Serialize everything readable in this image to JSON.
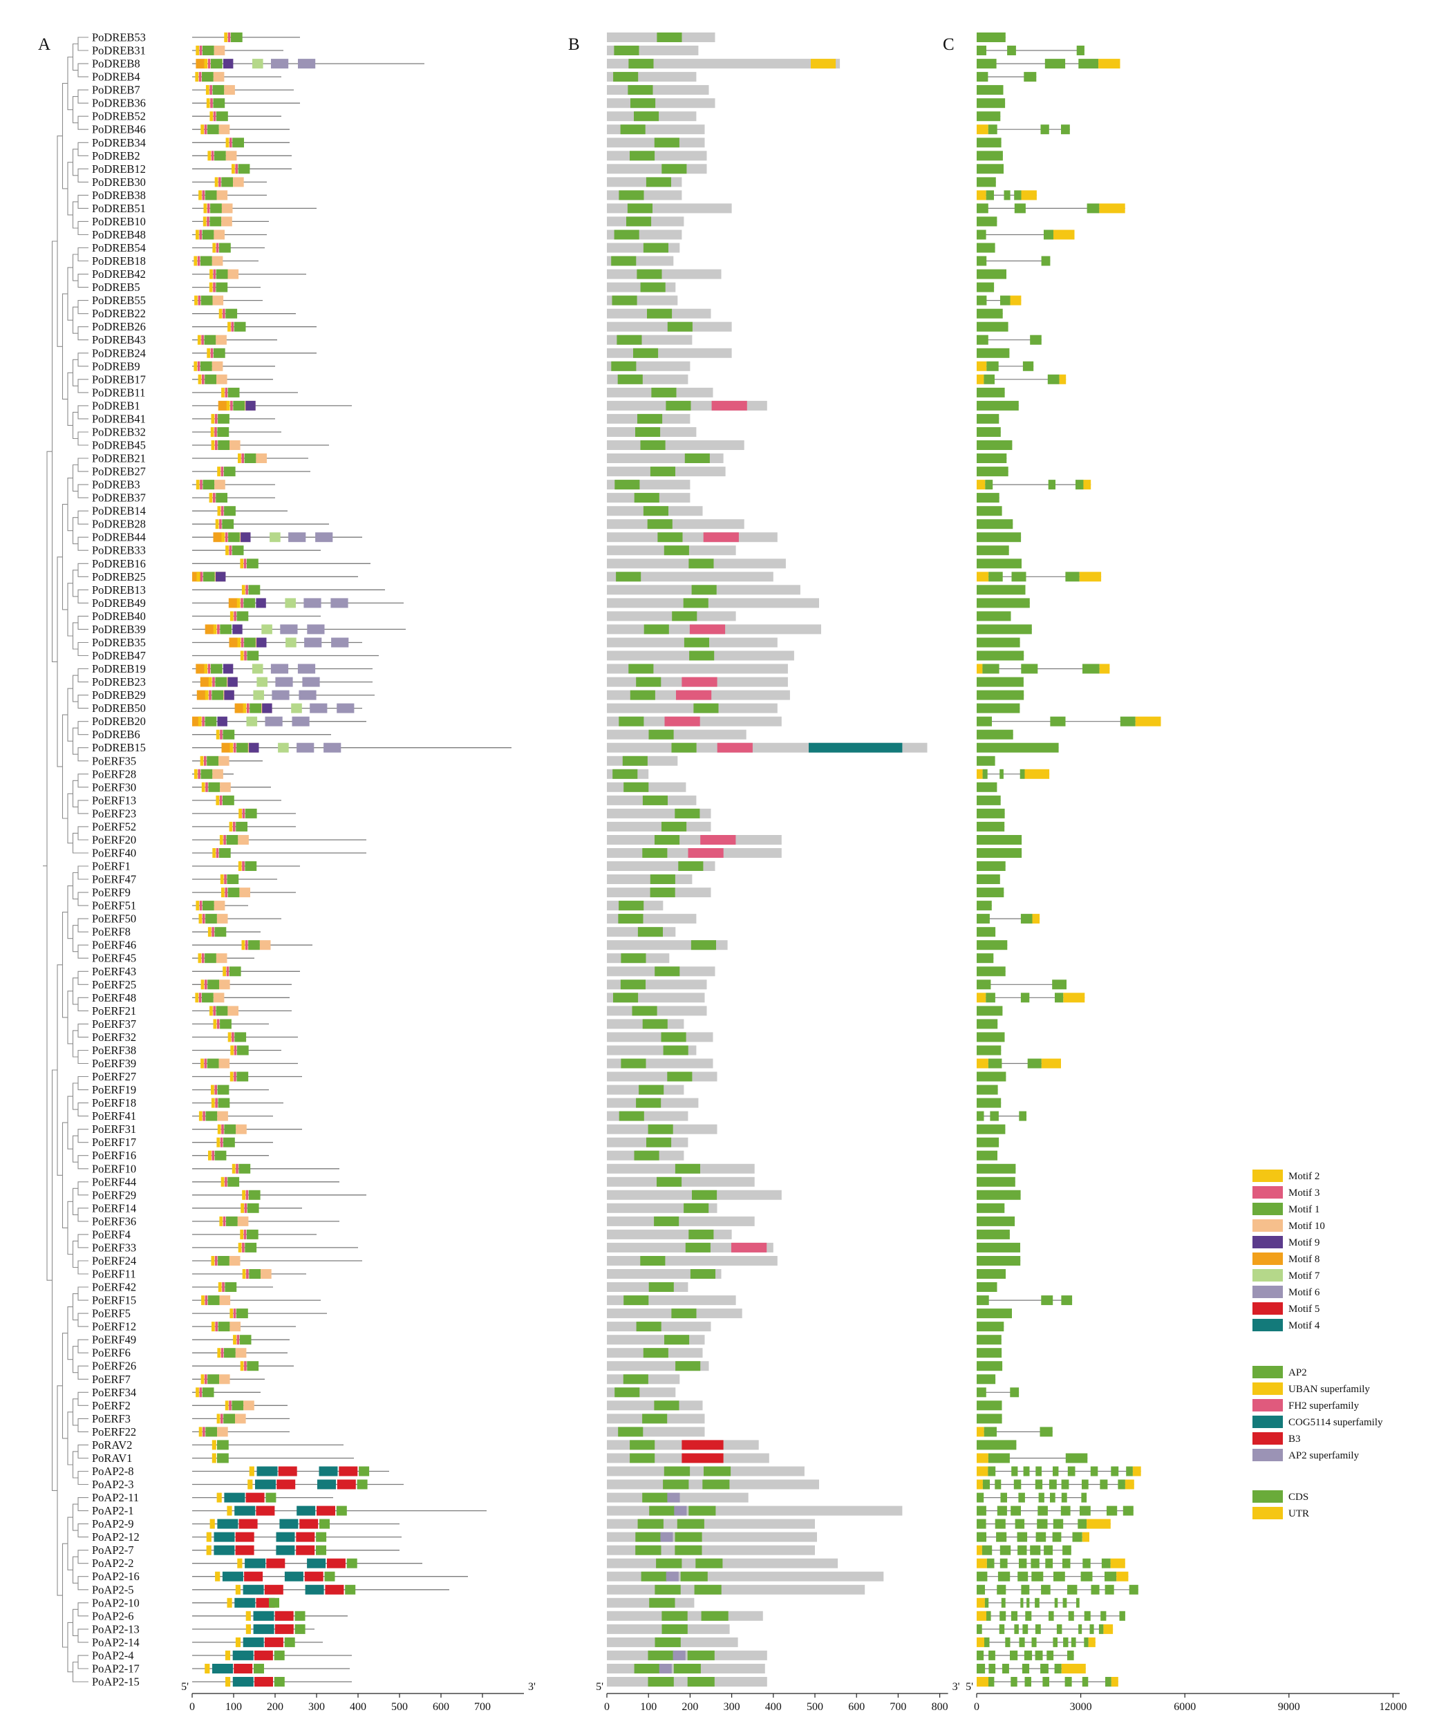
{
  "panels": {
    "a": "A",
    "b": "B",
    "c": "C"
  },
  "chart_data": [
    {
      "panel": "A",
      "type": "motif-schematic with phylogenetic tree",
      "genes": [
        "PoDREB53",
        "PoDREB31",
        "PoDREB8",
        "PoDREB4",
        "PoDREB7",
        "PoDREB36",
        "PoDREB52",
        "PoDREB46",
        "PoDREB34",
        "PoDREB2",
        "PoDREB12",
        "PoDREB30",
        "PoDREB38",
        "PoDREB51",
        "PoDREB10",
        "PoDREB48",
        "PoDREB54",
        "PoDREB18",
        "PoDREB42",
        "PoDREB5",
        "PoDREB55",
        "PoDREB22",
        "PoDREB26",
        "PoDREB43",
        "PoDREB24",
        "PoDREB9",
        "PoDREB17",
        "PoDREB11",
        "PoDREB1",
        "PoDREB41",
        "PoDREB32",
        "PoDREB45",
        "PoDREB21",
        "PoDREB27",
        "PoDREB3",
        "PoDREB37",
        "PoDREB14",
        "PoDREB28",
        "PoDREB44",
        "PoDREB33",
        "PoDREB16",
        "PoDREB25",
        "PoDREB13",
        "PoDREB49",
        "PoDREB40",
        "PoDREB39",
        "PoDREB35",
        "PoDREB47",
        "PoDREB19",
        "PoDREB23",
        "PoDREB29",
        "PoDREB50",
        "PoDREB20",
        "PoDREB6",
        "PoDREB15",
        "PoERF35",
        "PoERF28",
        "PoERF30",
        "PoERF13",
        "PoERF23",
        "PoERF52",
        "PoERF20",
        "PoERF40",
        "PoERF1",
        "PoERF47",
        "PoERF9",
        "PoERF51",
        "PoERF50",
        "PoERF8",
        "PoERF46",
        "PoERF45",
        "PoERF43",
        "PoERF25",
        "PoERF48",
        "PoERF21",
        "PoERF37",
        "PoERF32",
        "PoERF38",
        "PoERF39",
        "PoERF27",
        "PoERF19",
        "PoERF18",
        "PoERF41",
        "PoERF31",
        "PoERF17",
        "PoERF16",
        "PoERF10",
        "PoERF44",
        "PoERF29",
        "PoERF14",
        "PoERF36",
        "PoERF4",
        "PoERF33",
        "PoERF24",
        "PoERF11",
        "PoERF42",
        "PoERF15",
        "PoERF5",
        "PoERF12",
        "PoERF49",
        "PoERF6",
        "PoERF26",
        "PoERF7",
        "PoERF34",
        "PoERF2",
        "PoERF3",
        "PoERF22",
        "PoRAV2",
        "PoRAV1",
        "PoAP2-8",
        "PoAP2-3",
        "PoAP2-11",
        "PoAP2-1",
        "PoAP2-9",
        "PoAP2-12",
        "PoAP2-7",
        "PoAP2-2",
        "PoAP2-16",
        "PoAP2-5",
        "PoAP2-10",
        "PoAP2-6",
        "PoAP2-13",
        "PoAP2-14",
        "PoAP2-4",
        "PoAP2-17",
        "PoAP2-15"
      ],
      "protein_length_aa": [
        260,
        220,
        560,
        215,
        245,
        260,
        215,
        235,
        235,
        240,
        240,
        180,
        180,
        300,
        185,
        180,
        175,
        160,
        275,
        165,
        170,
        250,
        300,
        205,
        300,
        200,
        195,
        255,
        385,
        200,
        215,
        330,
        280,
        285,
        200,
        200,
        230,
        330,
        410,
        310,
        430,
        400,
        465,
        510,
        310,
        515,
        410,
        450,
        435,
        435,
        440,
        410,
        420,
        335,
        770,
        170,
        100,
        190,
        215,
        250,
        250,
        420,
        420,
        260,
        205,
        250,
        135,
        215,
        165,
        290,
        150,
        260,
        240,
        235,
        240,
        185,
        255,
        215,
        255,
        265,
        185,
        220,
        195,
        265,
        195,
        185,
        355,
        355,
        420,
        265,
        355,
        300,
        400,
        410,
        275,
        195,
        310,
        325,
        250,
        235,
        230,
        245,
        175,
        165,
        230,
        235,
        235,
        365,
        390,
        475,
        510,
        340,
        710,
        500,
        505,
        500,
        555,
        665,
        620,
        210,
        375,
        295,
        315,
        385,
        380,
        385
      ],
      "ticks": [
        "0",
        "100",
        "200",
        "300",
        "400",
        "500",
        "600",
        "700"
      ],
      "end_labels": [
        "5'",
        "3'"
      ]
    },
    {
      "panel": "B",
      "type": "conserved-domain schematic",
      "ticks": [
        "0",
        "100",
        "200",
        "300",
        "400",
        "500",
        "600",
        "700",
        "800"
      ],
      "end_labels": [
        "5'",
        "3'"
      ]
    },
    {
      "panel": "C",
      "type": "gene-structure schematic",
      "ticks": [
        "0",
        "3000",
        "6000",
        "9000",
        "12000"
      ],
      "end_labels": [
        "5'"
      ]
    }
  ],
  "legend_motifs": [
    {
      "label": "Motif 2",
      "color": "#f5c613"
    },
    {
      "label": "Motif 3",
      "color": "#e05a7d"
    },
    {
      "label": "Motif 1",
      "color": "#6aab3a"
    },
    {
      "label": "Motif 10",
      "color": "#f6bf8c"
    },
    {
      "label": "Motif 9",
      "color": "#5b3b8c"
    },
    {
      "label": "Motif 8",
      "color": "#f2a01a"
    },
    {
      "label": "Motif 7",
      "color": "#b5d88a"
    },
    {
      "label": "Motif 6",
      "color": "#9b93b5"
    },
    {
      "label": "Motif 5",
      "color": "#d81e26"
    },
    {
      "label": "Motif 4",
      "color": "#137a7a"
    }
  ],
  "legend_domains": [
    {
      "label": "AP2",
      "color": "#6aab3a"
    },
    {
      "label": "UBAN superfamily",
      "color": "#f5c613"
    },
    {
      "label": "FH2 superfamily",
      "color": "#e05a7d"
    },
    {
      "label": "COG5114 superfamily",
      "color": "#137a7a"
    },
    {
      "label": "B3",
      "color": "#d81e26"
    },
    {
      "label": "AP2 superfamily",
      "color": "#9b93b5"
    }
  ],
  "legend_structure": [
    {
      "label": "CDS",
      "color": "#6aab3a"
    },
    {
      "label": "UTR",
      "color": "#f5c613"
    }
  ]
}
